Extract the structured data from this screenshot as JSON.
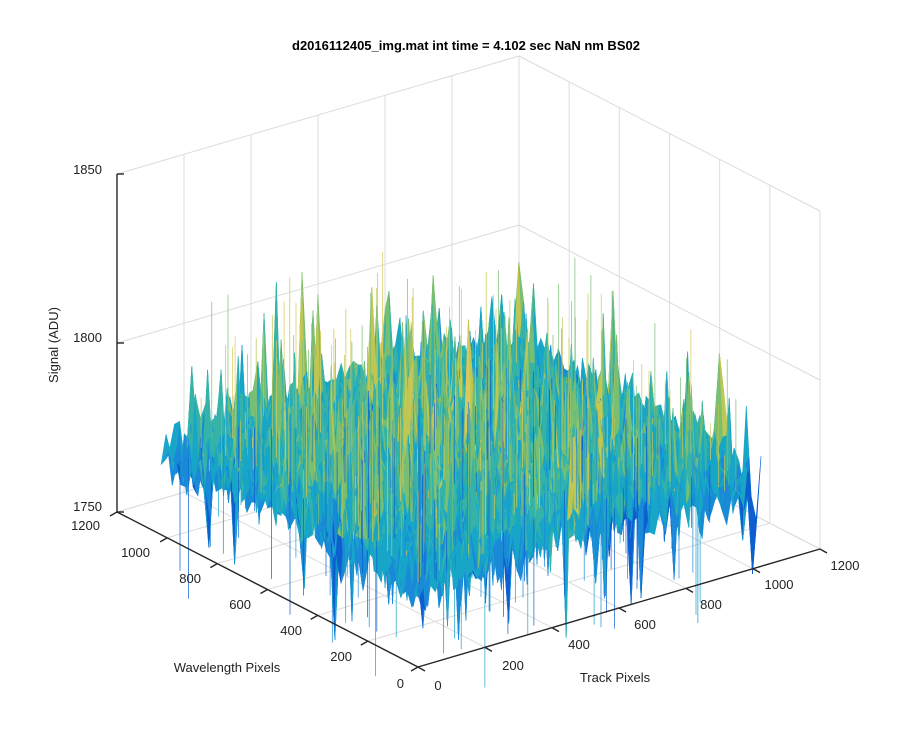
{
  "chart_data": {
    "type": "surface",
    "title": "d2016112405_img.mat int time = 4.102 sec  NaN nm BS02",
    "xlabel": "Track Pixels",
    "ylabel": "Wavelength Pixels",
    "zlabel": "Signal (ADU)",
    "xlim": [
      0,
      1200
    ],
    "ylim": [
      0,
      1200
    ],
    "zlim": [
      1750,
      1850
    ],
    "x_ticks": [
      0,
      200,
      400,
      600,
      800,
      1000,
      1200
    ],
    "y_ticks": [
      0,
      200,
      400,
      600,
      800,
      1000,
      1200
    ],
    "z_ticks": [
      1750,
      1800,
      1850
    ],
    "x_tick_labels": [
      "0",
      "200",
      "400",
      "600",
      "800",
      "1000",
      "1200"
    ],
    "y_tick_labels": [
      "0",
      "200",
      "400",
      "600",
      "800",
      "1000",
      "1200"
    ],
    "z_tick_labels": [
      "1750",
      "1800",
      "1850"
    ],
    "surface": {
      "x_extent": [
        0,
        1024
      ],
      "y_extent": [
        0,
        1024
      ],
      "base_level": 1778,
      "edge_level": 1773,
      "noise_amplitude": 14,
      "colormap": [
        "#0d5fd0",
        "#1a8ad8",
        "#18a6c8",
        "#35b3a8",
        "#78bf72",
        "#c0c652",
        "#d9c95a"
      ]
    },
    "grid": true
  }
}
